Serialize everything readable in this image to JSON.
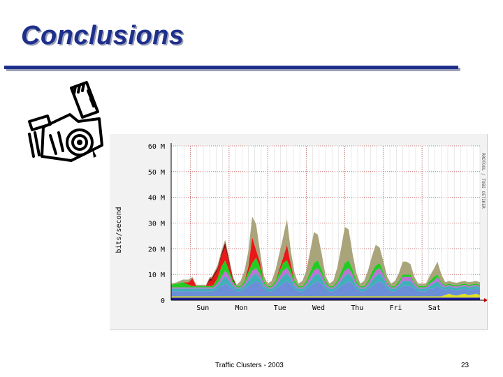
{
  "slide": {
    "title": "Conclusions",
    "footer_text": "Traffic Clusters - 2003",
    "page_number": "23"
  },
  "colors": {
    "title": "#1e2f8c",
    "rule": "#1e2f8c",
    "chart_background": "#f2f2f2",
    "grid": "#c05050"
  },
  "chart_data": {
    "type": "area",
    "stacked": true,
    "ylabel": "bits/second",
    "side_label": "RRDTOOL / TOBI OETIKER",
    "xlabel": "",
    "ylim": [
      0,
      60
    ],
    "y_ticks": [
      {
        "value": 0,
        "label": "0"
      },
      {
        "value": 10,
        "label": "10 M"
      },
      {
        "value": 20,
        "label": "20 M"
      },
      {
        "value": 30,
        "label": "30 M"
      },
      {
        "value": 40,
        "label": "40 M"
      },
      {
        "value": 50,
        "label": "50 M"
      },
      {
        "value": 60,
        "label": "60 M"
      }
    ],
    "x_ticks": [
      {
        "value": 1,
        "label": "Sun"
      },
      {
        "value": 2,
        "label": "Mon"
      },
      {
        "value": 3,
        "label": "Tue"
      },
      {
        "value": 4,
        "label": "Wed"
      },
      {
        "value": 5,
        "label": "Thu"
      },
      {
        "value": 6,
        "label": "Fri"
      },
      {
        "value": 7,
        "label": "Sat"
      }
    ],
    "xlim": [
      0,
      8
    ],
    "grid": true,
    "x": [
      0.0,
      0.15,
      0.3,
      0.45,
      0.55,
      0.65,
      0.8,
      0.9,
      1.0,
      1.05,
      1.1,
      1.2,
      1.3,
      1.4,
      1.5,
      1.6,
      1.7,
      1.8,
      1.9,
      2.0,
      2.1,
      2.2,
      2.3,
      2.4,
      2.5,
      2.6,
      2.7,
      2.8,
      2.9,
      3.0,
      3.1,
      3.2,
      3.3,
      3.4,
      3.5,
      3.6,
      3.7,
      3.8,
      3.9,
      4.0,
      4.1,
      4.2,
      4.3,
      4.4,
      4.5,
      4.6,
      4.7,
      4.8,
      4.9,
      5.0,
      5.1,
      5.2,
      5.3,
      5.4,
      5.5,
      5.6,
      5.7,
      5.8,
      5.9,
      6.0,
      6.1,
      6.2,
      6.3,
      6.4,
      6.5,
      6.6,
      6.7,
      6.8,
      6.9,
      7.0,
      7.1,
      7.2,
      7.3,
      7.4,
      7.5,
      7.6,
      7.7,
      7.8,
      7.9,
      8.0
    ],
    "series": [
      {
        "color": "#1a1aa0",
        "values": [
          1,
          1,
          1,
          1,
          1,
          1,
          1,
          1,
          1,
          1,
          1,
          1,
          1,
          1,
          1,
          1,
          1,
          1,
          1,
          1,
          1,
          1,
          1,
          1,
          1,
          1,
          1,
          1,
          1,
          1,
          1,
          1,
          1,
          1,
          1,
          1,
          1,
          1,
          1,
          1,
          1,
          1,
          1,
          1,
          1,
          1,
          1,
          1,
          1,
          1,
          1,
          1,
          1,
          1,
          1,
          1,
          1,
          1,
          1,
          1,
          1,
          1,
          1,
          1,
          1,
          1,
          1,
          1,
          1,
          1,
          1,
          1,
          1,
          1,
          1,
          1,
          1,
          1,
          1,
          1
        ]
      },
      {
        "color": "#e0e020",
        "values": [
          0.5,
          0.5,
          0.5,
          0.5,
          0.5,
          0.5,
          0.5,
          0.5,
          0.5,
          0.5,
          0.5,
          0.5,
          0.5,
          0.5,
          0.5,
          0.5,
          0.5,
          0.5,
          0.5,
          0.5,
          0.5,
          0.5,
          0.5,
          0.5,
          0.5,
          0.5,
          0.5,
          0.5,
          0.5,
          0.5,
          0.5,
          0.5,
          0.5,
          0.5,
          0.5,
          0.5,
          0.5,
          0.5,
          0.5,
          0.5,
          0.5,
          0.5,
          0.5,
          0.5,
          0.5,
          0.5,
          0.5,
          0.5,
          0.5,
          0.5,
          0.5,
          0.5,
          0.5,
          0.5,
          0.5,
          0.5,
          0.5,
          0.5,
          0.5,
          0.5,
          0.5,
          0.5,
          0.5,
          0.5,
          0.5,
          0.5,
          0.5,
          0.5,
          0.5,
          0.5,
          1,
          1.5,
          1,
          0.8,
          1.2,
          1.5,
          1,
          1.2,
          1.5,
          1
        ]
      },
      {
        "color": "#6a8fd8",
        "values": [
          2,
          2,
          2,
          2,
          2,
          2,
          2,
          2,
          2,
          2,
          2,
          3,
          4,
          5,
          4,
          3,
          2,
          2,
          3,
          4,
          5,
          6,
          5,
          3,
          2,
          2,
          3,
          4,
          5,
          6,
          5,
          3,
          2,
          2,
          3,
          4,
          5,
          6,
          5,
          3,
          2,
          2,
          3,
          4,
          5,
          6,
          5,
          3,
          2,
          2,
          3,
          4,
          5,
          6,
          5,
          3,
          2,
          2,
          3,
          4,
          4,
          4,
          3,
          2,
          2,
          2,
          3,
          3,
          4,
          3,
          2,
          2,
          2,
          2,
          2,
          2,
          2,
          2,
          2,
          2
        ]
      },
      {
        "color": "#40b0b8",
        "values": [
          1,
          1,
          1,
          1,
          1,
          1,
          1,
          1,
          1,
          1,
          1,
          1,
          2,
          3,
          2,
          1,
          1,
          1,
          1,
          2,
          3,
          3,
          2,
          1,
          1,
          1,
          1,
          2,
          3,
          3,
          2,
          1,
          1,
          1,
          1,
          2,
          3,
          3,
          2,
          1,
          1,
          1,
          1,
          2,
          3,
          3,
          2,
          1,
          1,
          1,
          1,
          2,
          3,
          3,
          2,
          1,
          1,
          1,
          1,
          2,
          2,
          2,
          1,
          1,
          1,
          1,
          1,
          2,
          2,
          1,
          1,
          1,
          1,
          1,
          1,
          1,
          1,
          1,
          1,
          1
        ]
      },
      {
        "color": "#c070d8",
        "values": [
          0.5,
          0.5,
          0.5,
          0.5,
          0.5,
          0.5,
          0.5,
          0.5,
          0.5,
          0.5,
          0.5,
          1,
          1.5,
          2,
          2,
          1,
          0.5,
          0.5,
          1,
          1.5,
          2,
          2,
          1.5,
          1,
          0.5,
          0.5,
          1,
          1.5,
          2,
          2,
          1.5,
          1,
          0.5,
          0.5,
          1,
          1.5,
          2,
          2,
          1.5,
          1,
          0.5,
          0.5,
          1,
          1.5,
          2,
          2,
          1.5,
          1,
          0.5,
          0.5,
          1,
          1.5,
          2,
          2,
          1.5,
          1,
          0.5,
          0.5,
          1,
          1.5,
          1.5,
          1.5,
          1,
          0.5,
          0.5,
          0.5,
          1,
          1,
          1.5,
          1,
          0.5,
          0.5,
          0.5,
          0.5,
          0.5,
          0.5,
          0.5,
          0.5,
          0.5,
          0.5
        ]
      },
      {
        "color": "#22cc22",
        "values": [
          1,
          1.5,
          2,
          1,
          0.5,
          0.5,
          0.5,
          0.5,
          0.5,
          0.5,
          1,
          2,
          4,
          4,
          2,
          1,
          0.5,
          0.5,
          1,
          2,
          3,
          4,
          3,
          1,
          0.5,
          0.5,
          1,
          2,
          3,
          3,
          2,
          1,
          0.5,
          0.5,
          1,
          2,
          3,
          3,
          2,
          1,
          0.5,
          0.5,
          1,
          2,
          3,
          3,
          2,
          1,
          0.5,
          0.5,
          1,
          2,
          2,
          2,
          1,
          0.5,
          0.5,
          0.5,
          1,
          1,
          1,
          1,
          0.5,
          0.5,
          0.5,
          0.5,
          1,
          1.5,
          1,
          0.5,
          0.5,
          0.5,
          0.5,
          0.5,
          0.5,
          0.5,
          0.5,
          0.5,
          0.5,
          0.5
        ]
      },
      {
        "color": "#e81818",
        "values": [
          0,
          0,
          0,
          1,
          3,
          0,
          0,
          0,
          2,
          2,
          3,
          3,
          4,
          5,
          3,
          0,
          0,
          0,
          0,
          2,
          10,
          3,
          2,
          0,
          0,
          0,
          0,
          1,
          2,
          6,
          2,
          0,
          0,
          0,
          0,
          0,
          0,
          0,
          0,
          0,
          0,
          0,
          0,
          0,
          0,
          0,
          0,
          0,
          0,
          0,
          0,
          0,
          0,
          0,
          0,
          0,
          0,
          0,
          0,
          0,
          0,
          0,
          0,
          0,
          0,
          0,
          0,
          0,
          0,
          0,
          0,
          0,
          0,
          0,
          0,
          0,
          0,
          0,
          0,
          0
        ]
      },
      {
        "color": "#8b0a0a",
        "values": [
          0,
          0,
          0,
          0,
          0,
          0,
          0,
          0,
          1,
          1,
          1,
          1,
          1,
          2,
          1,
          1,
          0,
          0,
          0,
          0,
          0,
          0,
          0,
          0,
          0,
          0,
          0,
          0,
          0,
          0,
          0,
          0,
          0,
          0,
          0,
          0,
          0,
          0,
          0,
          0,
          0,
          0,
          0,
          0,
          0,
          0,
          0,
          0,
          0,
          0,
          0,
          0,
          0,
          0,
          0,
          0,
          0,
          0,
          0,
          0,
          0,
          0,
          0,
          0,
          0,
          0,
          0,
          0,
          0,
          0,
          0,
          0,
          0,
          0,
          0,
          0,
          0,
          0,
          0,
          0
        ]
      },
      {
        "color": "#aaa47a",
        "values": [
          0.5,
          0.5,
          1,
          1,
          0.5,
          0.5,
          0.5,
          0.5,
          0.5,
          0.5,
          0.5,
          1,
          1,
          1,
          1,
          0.5,
          0.5,
          2,
          4,
          6,
          8,
          10,
          4,
          2,
          1,
          2,
          4,
          6,
          8,
          10,
          5,
          3,
          1,
          2,
          4,
          8,
          12,
          10,
          6,
          2,
          1,
          2,
          5,
          9,
          14,
          12,
          6,
          3,
          1,
          2,
          4,
          6,
          8,
          6,
          4,
          2,
          1,
          2,
          3,
          5,
          5,
          4,
          2,
          1,
          1,
          1,
          2,
          3,
          5,
          3,
          1,
          1,
          1,
          1,
          1,
          1,
          1,
          1,
          1,
          1
        ]
      }
    ],
    "series_note": ""
  }
}
